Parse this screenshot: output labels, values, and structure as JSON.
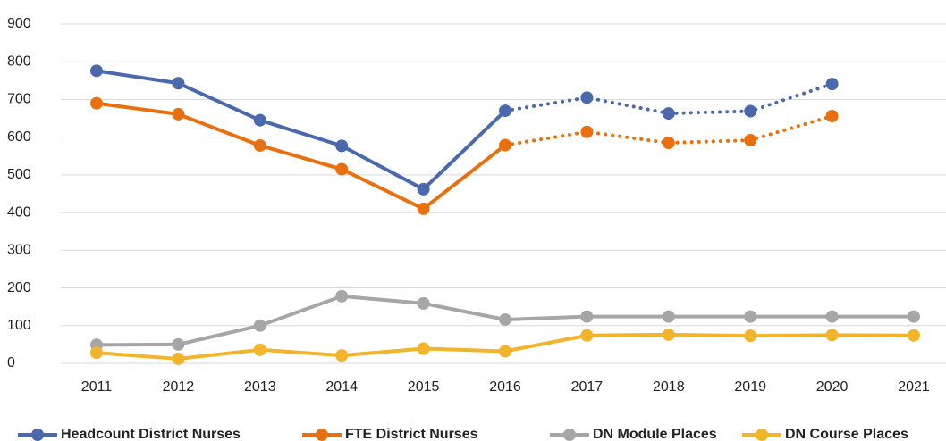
{
  "chart_data": {
    "type": "line",
    "categories": [
      "2011",
      "2012",
      "2013",
      "2014",
      "2015",
      "2016",
      "2017",
      "2018",
      "2019",
      "2020",
      "2021"
    ],
    "series": [
      {
        "name": "Headcount District Nurses",
        "color": "#4a69ad",
        "dash_start": 5,
        "values": [
          776,
          743,
          645,
          577,
          462,
          670,
          705,
          663,
          669,
          741,
          null
        ]
      },
      {
        "name": "FTE  District Nurses",
        "color": "#e8700e",
        "dash_start": 5,
        "values": [
          690,
          661,
          578,
          515,
          410,
          579,
          614,
          585,
          592,
          656,
          null
        ]
      },
      {
        "name": "DN Module Places",
        "color": "#a6a6a6",
        "values": [
          49,
          50,
          100,
          178,
          159,
          116,
          124,
          124,
          124,
          124,
          124
        ]
      },
      {
        "name": "DN Course Places",
        "color": "#f2b42a",
        "values": [
          28,
          12,
          36,
          21,
          39,
          32,
          74,
          76,
          73,
          75,
          74
        ]
      }
    ],
    "ylim": [
      0,
      900
    ],
    "yticks": [
      0,
      100,
      200,
      300,
      400,
      500,
      600,
      700,
      800,
      900
    ],
    "grid": true
  }
}
